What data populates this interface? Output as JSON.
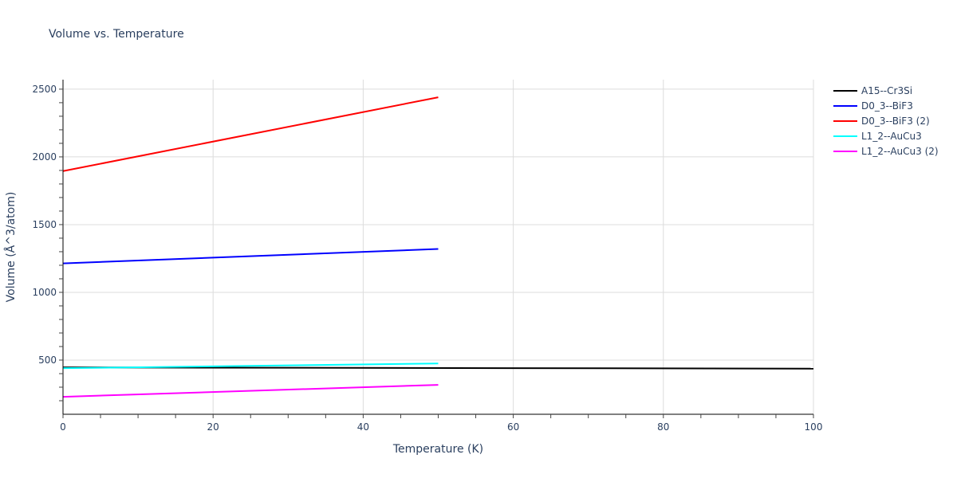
{
  "chart_data": {
    "type": "line",
    "title": "Volume vs. Temperature",
    "xlabel": "Temperature (K)",
    "ylabel": "Volume (Å^3/atom)",
    "xlim": [
      0,
      100
    ],
    "ylim": [
      100,
      2570
    ],
    "x_ticks": [
      0,
      20,
      40,
      60,
      80,
      100
    ],
    "y_ticks": [
      500,
      1000,
      1500,
      2000,
      2500
    ],
    "grid": true,
    "legend_position": "right",
    "series": [
      {
        "name": "A15--Cr3Si",
        "color": "#000000",
        "x": [
          0,
          100
        ],
        "y": [
          446,
          437
        ]
      },
      {
        "name": "D0_3--BiF3",
        "color": "#0000ff",
        "x": [
          0,
          50
        ],
        "y": [
          1214,
          1320
        ]
      },
      {
        "name": "D0_3--BiF3 (2)",
        "color": "#ff0000",
        "x": [
          0,
          50
        ],
        "y": [
          1895,
          2440
        ]
      },
      {
        "name": "L1_2--AuCu3",
        "color": "#00ffff",
        "x": [
          0,
          50
        ],
        "y": [
          440,
          475
        ]
      },
      {
        "name": "L1_2--AuCu3 (2)",
        "color": "#ff00ff",
        "x": [
          0,
          50
        ],
        "y": [
          229,
          317
        ]
      }
    ]
  }
}
